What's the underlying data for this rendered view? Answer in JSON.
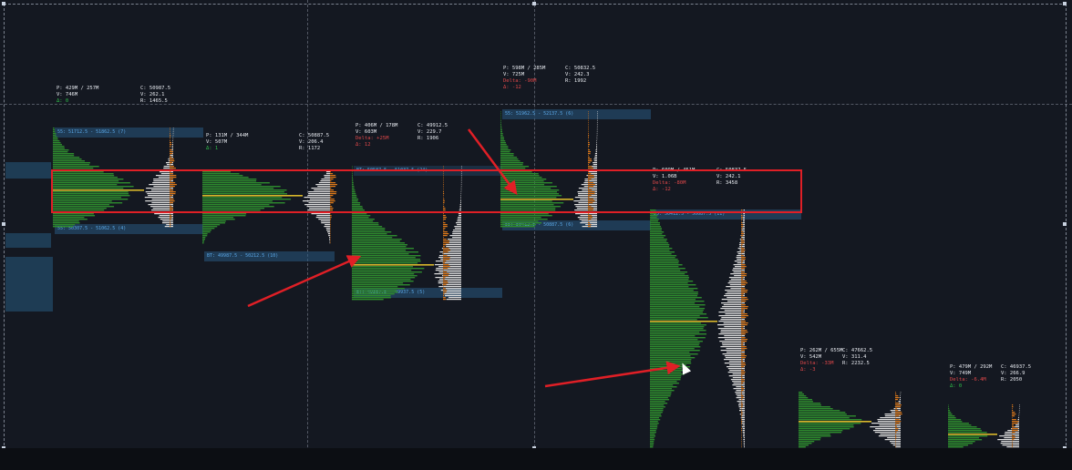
{
  "colors": {
    "background": "#141821",
    "buy_volume": "#2e8b2e",
    "sell_volume": "#e0e0e0",
    "delta_profile": "#e07a1a",
    "poc_line": "#d9b72b",
    "value_area": "#28577d",
    "annotation": "#e01f26"
  },
  "profiles": [
    {
      "stats": [
        "P: 429M / 257M",
        "V: 746M",
        "",
        "Δ: 0"
      ],
      "stats_right": [
        "C: 50987.5",
        "V: 262.1",
        "",
        "R: 1465.5"
      ],
      "va_high": "55: 51712.5 - 51862.5 (7)",
      "va_low": "55: 50307.5 - 51062.5 (4)"
    },
    {
      "stats": [
        "P: 131M / 344M",
        "V: 507M",
        "",
        "Δ: 1"
      ],
      "stats_right": [
        "C: 50887.5",
        "V: 206.4",
        "",
        "R: 1172"
      ],
      "va_low": "BT: 49987.5 - 50212.5 (10)"
    },
    {
      "stats": [
        "P: 406M / 178M",
        "V: 603M",
        "Delta: +25M",
        "Δ: 12"
      ],
      "stats_right": [
        "C: 49912.5",
        "V: 229.7",
        "",
        "R: 1906"
      ],
      "va_high": "BT: 50587.5 - 51037.5 (24)",
      "va_low": "BT: 49387.5 - 49937.5 (5)"
    },
    {
      "stats": [
        "P: 598M / 285M",
        "V: 725M",
        "Delta: -90M",
        "Δ: -12"
      ],
      "stats_right": [
        "C: 50832.5",
        "V: 242.3",
        "",
        "R: 1992"
      ],
      "va_high": "55: 51962.5 - 52137.5 (6)",
      "va_low": "55: 50412.5 - 50887.5 (6)"
    },
    {
      "stats": [
        "P: 609M / 451M",
        "V: 1.06B",
        "Delta: -80M",
        "Δ: -12"
      ],
      "stats_right": [
        "C: 50837.5",
        "V: 242.1",
        "",
        "R: 3458"
      ],
      "va_high": "55: 50412.5 - 50687.5 (11)"
    },
    {
      "stats": [
        "P: 262M / 655M",
        "V: 542M",
        "Delta: -33M",
        "Δ: -3"
      ],
      "stats_right": [
        "C: 47662.5",
        "V: 311.4",
        "",
        "R: 2232.5"
      ]
    },
    {
      "stats": [
        "P: 479M / 292M",
        "V: 749M",
        "Delta: -6.4M",
        "Δ: 0"
      ],
      "stats_right": [
        "C: 46937.5",
        "V: 266.9",
        "",
        "R: 2050"
      ]
    }
  ]
}
